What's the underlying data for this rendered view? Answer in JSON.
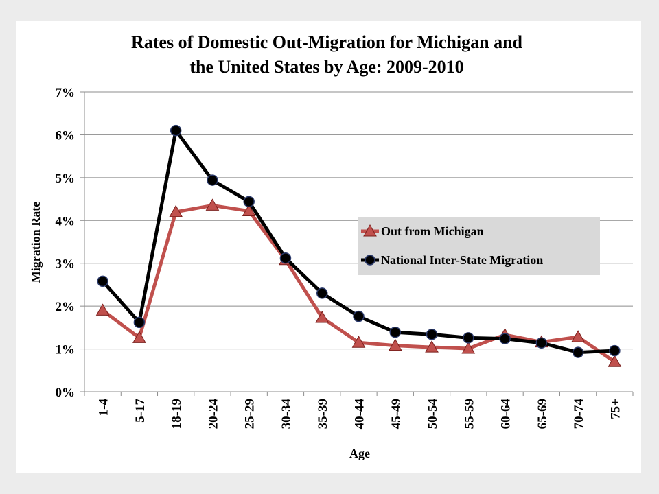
{
  "chart_data": {
    "type": "line",
    "title_line1": "Rates of Domestic Out-Migration for Michigan and",
    "title_line2": "the United States by Age: 2009-2010",
    "xlabel": "Age",
    "ylabel": "Migration Rate",
    "categories": [
      "1-4",
      "5-17",
      "18-19",
      "20-24",
      "25-29",
      "30-34",
      "35-39",
      "40-44",
      "45-49",
      "50-54",
      "55-59",
      "60-64",
      "65-69",
      "70-74",
      "75+"
    ],
    "ylim": [
      0,
      7
    ],
    "yticks": [
      "0%",
      "1%",
      "2%",
      "3%",
      "4%",
      "5%",
      "6%",
      "7%"
    ],
    "grid": true,
    "legend_position": "center-right",
    "series": [
      {
        "name": "Out from Michigan",
        "color": "#c0504d",
        "marker": "triangle",
        "values": [
          1.9,
          1.26,
          4.2,
          4.35,
          4.22,
          3.08,
          1.73,
          1.15,
          1.08,
          1.04,
          1.01,
          1.33,
          1.16,
          1.28,
          0.7
        ]
      },
      {
        "name": "National Inter-State Migration",
        "color": "#000000",
        "marker": "circle",
        "values": [
          2.58,
          1.62,
          6.1,
          4.94,
          4.44,
          3.12,
          2.3,
          1.76,
          1.39,
          1.34,
          1.26,
          1.24,
          1.14,
          0.92,
          0.96
        ]
      }
    ]
  }
}
